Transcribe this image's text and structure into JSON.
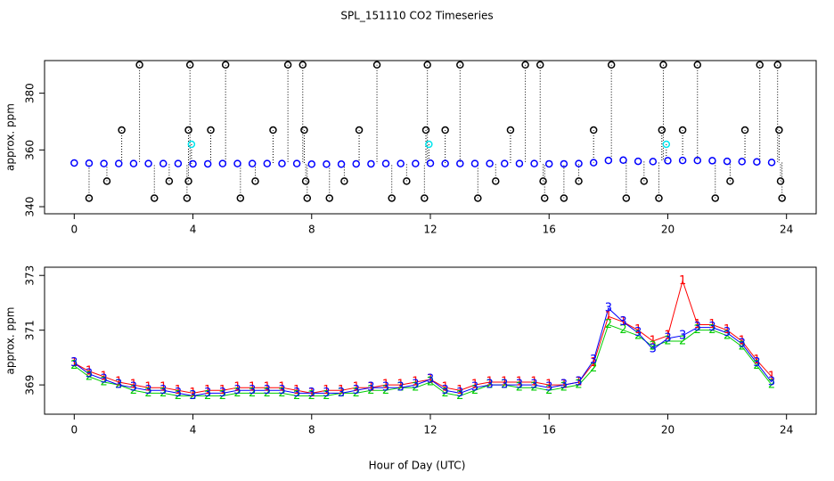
{
  "chart_data": [
    {
      "type": "scatter",
      "title": "SPL_151110  CO2 Timeseries",
      "ylabel": "approx. ppm",
      "xlim": [
        -1,
        25
      ],
      "xticks": [
        0,
        4,
        8,
        12,
        16,
        20,
        24
      ],
      "ylim": [
        337.5,
        391.5
      ],
      "yticks": [
        340,
        360,
        380
      ],
      "series": [
        {
          "color": "#0000ff",
          "x": [
            0,
            0.5,
            1,
            1.5,
            2,
            2.5,
            3,
            3.5,
            4,
            4.5,
            5,
            5.5,
            6,
            6.5,
            7,
            7.5,
            8,
            8.5,
            9,
            9.5,
            10,
            10.5,
            11,
            11.5,
            12,
            12.5,
            13,
            13.5,
            14,
            14.5,
            15,
            15.5,
            16,
            16.5,
            17,
            17.5,
            18,
            18.5,
            19,
            19.5,
            20,
            20.5,
            21,
            21.5,
            22,
            22.5,
            23,
            23.5
          ],
          "values": [
            355.4,
            355.3,
            355.2,
            355.2,
            355.2,
            355.2,
            355.2,
            355.2,
            355.1,
            355.1,
            355.2,
            355.2,
            355.2,
            355.2,
            355.2,
            355.2,
            355.0,
            355.0,
            355.0,
            355.1,
            355.1,
            355.2,
            355.2,
            355.2,
            355.3,
            355.2,
            355.2,
            355.2,
            355.2,
            355.2,
            355.2,
            355.2,
            355.1,
            355.1,
            355.2,
            355.5,
            356.3,
            356.4,
            356.0,
            355.9,
            356.2,
            356.3,
            356.3,
            356.2,
            356.0,
            355.9,
            355.8,
            355.6
          ]
        },
        {
          "color": "#000000",
          "x": [
            0.5,
            1.1,
            1.6,
            2.2,
            2.7,
            3.2,
            3.8,
            3.85,
            3.85,
            3.9,
            4.6,
            5.1,
            5.6,
            6.1,
            6.7,
            7.2,
            7.7,
            7.75,
            7.8,
            7.85,
            8.6,
            9.1,
            9.6,
            10.2,
            10.7,
            11.2,
            11.8,
            11.85,
            11.9,
            12.5,
            13.0,
            13.6,
            14.2,
            14.7,
            15.2,
            15.7,
            15.8,
            15.85,
            16.5,
            17.0,
            17.5,
            18.1,
            18.6,
            19.2,
            19.7,
            19.8,
            19.85,
            20.5,
            21.0,
            21.6,
            22.1,
            22.6,
            23.1,
            23.7,
            23.75,
            23.8,
            23.85
          ],
          "values": [
            343,
            349,
            367,
            390,
            343,
            349,
            343,
            349,
            367,
            390,
            367,
            390,
            343,
            349,
            367,
            390,
            390,
            367,
            349,
            343,
            343,
            349,
            367,
            390,
            343,
            349,
            343,
            367,
            390,
            367,
            390,
            343,
            349,
            367,
            390,
            390,
            349,
            343,
            343,
            349,
            367,
            390,
            343,
            349,
            343,
            367,
            390,
            367,
            390,
            343,
            349,
            367,
            390,
            390,
            367,
            349,
            343
          ]
        },
        {
          "color": "#00e5ee",
          "x": [
            3.95,
            11.95,
            19.95
          ],
          "values": [
            362,
            362,
            362
          ]
        }
      ]
    },
    {
      "type": "line",
      "xlabel": "Hour of Day (UTC)",
      "ylabel": "approx. ppm",
      "xlim": [
        -1,
        25
      ],
      "xticks": [
        0,
        4,
        8,
        12,
        16,
        20,
        24
      ],
      "ylim": [
        367.93,
        373.3
      ],
      "yticks": [
        369,
        371,
        373
      ],
      "x": [
        0,
        0.5,
        1,
        1.5,
        2,
        2.5,
        3,
        3.5,
        4,
        4.5,
        5,
        5.5,
        6,
        6.5,
        7,
        7.5,
        8,
        8.5,
        9,
        9.5,
        10,
        10.5,
        11,
        11.5,
        12,
        12.5,
        13,
        13.5,
        14,
        14.5,
        15,
        15.5,
        16,
        16.5,
        17,
        17.5,
        18,
        18.5,
        19,
        19.5,
        20,
        20.5,
        21,
        21.5,
        22,
        22.5,
        23,
        23.5
      ],
      "series": [
        {
          "symbol": "1",
          "color": "#ff0000",
          "values": [
            369.8,
            369.5,
            369.3,
            369.1,
            369.0,
            368.9,
            368.9,
            368.8,
            368.7,
            368.8,
            368.8,
            368.9,
            368.9,
            368.9,
            368.9,
            368.8,
            368.7,
            368.8,
            368.8,
            368.9,
            368.9,
            369.0,
            369.0,
            369.1,
            369.2,
            368.9,
            368.8,
            369.0,
            369.1,
            369.1,
            369.1,
            369.1,
            369.0,
            369.0,
            369.1,
            369.8,
            371.5,
            371.3,
            371.0,
            370.6,
            370.8,
            372.8,
            371.2,
            371.2,
            371.0,
            370.6,
            369.9,
            369.3
          ]
        },
        {
          "symbol": "2",
          "color": "#00cd00",
          "values": [
            369.7,
            369.3,
            369.1,
            369.0,
            368.8,
            368.7,
            368.7,
            368.6,
            368.6,
            368.6,
            368.6,
            368.7,
            368.7,
            368.7,
            368.7,
            368.6,
            368.6,
            368.6,
            368.7,
            368.7,
            368.8,
            368.8,
            368.9,
            368.9,
            369.1,
            368.7,
            368.6,
            368.8,
            369.0,
            369.0,
            368.9,
            368.9,
            368.8,
            368.9,
            369.0,
            369.6,
            371.2,
            371.0,
            370.8,
            370.4,
            370.6,
            370.6,
            371.0,
            371.0,
            370.8,
            370.4,
            369.7,
            369.0
          ]
        },
        {
          "symbol": "3",
          "color": "#0000ff",
          "values": [
            369.8,
            369.4,
            369.2,
            369.0,
            368.9,
            368.8,
            368.8,
            368.7,
            368.6,
            368.7,
            368.7,
            368.8,
            368.8,
            368.8,
            368.8,
            368.7,
            368.7,
            368.7,
            368.7,
            368.8,
            368.9,
            368.9,
            368.9,
            369.0,
            369.2,
            368.8,
            368.7,
            368.9,
            369.0,
            369.0,
            369.0,
            369.0,
            368.9,
            369.0,
            369.1,
            369.9,
            371.8,
            371.3,
            370.9,
            370.3,
            370.7,
            370.8,
            371.1,
            371.1,
            370.9,
            370.5,
            369.8,
            369.1
          ]
        }
      ]
    }
  ]
}
